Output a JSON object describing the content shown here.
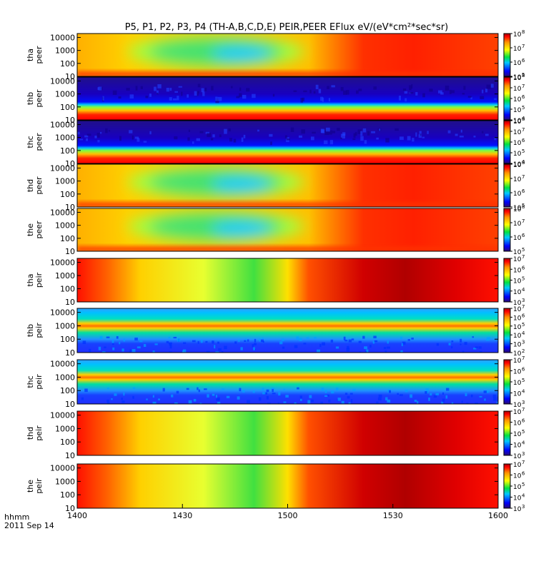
{
  "chart_data": {
    "type": "heatmap",
    "title": "P5, P1, P2, P3, P4 (TH-A,B,C,D,E) PEIR,PEER EFlux eV/(eV*cm²*sec*sr)",
    "time_axis": {
      "label_line1": "hhmm",
      "label_line2": "2011 Sep 14",
      "ticks": [
        "1400",
        "1430",
        "1500",
        "1530",
        "1600"
      ],
      "range": [
        "14:00",
        "16:00"
      ]
    },
    "y_axis": {
      "scale": "log",
      "range": [
        10,
        20000
      ],
      "ticks": [
        "10",
        "100",
        "1000",
        "10000"
      ]
    },
    "panels": [
      {
        "probe": "tha",
        "species": "peer",
        "pattern": "electron_smooth",
        "cbar_min_exp": 5,
        "cbar_max_exp": 8,
        "cbar_ticks": [
          "5",
          "6",
          "7",
          "8"
        ]
      },
      {
        "probe": "thb",
        "species": "peer",
        "pattern": "electron_band",
        "cbar_min_exp": 4,
        "cbar_max_exp": 8,
        "cbar_ticks": [
          "4",
          "5",
          "6",
          "7",
          "8"
        ]
      },
      {
        "probe": "thc",
        "species": "peer",
        "pattern": "electron_band",
        "cbar_min_exp": 4,
        "cbar_max_exp": 8,
        "cbar_ticks": [
          "4",
          "5",
          "6",
          "7",
          "8"
        ]
      },
      {
        "probe": "thd",
        "species": "peer",
        "pattern": "electron_smooth",
        "cbar_min_exp": 5,
        "cbar_max_exp": 8,
        "cbar_ticks": [
          "5",
          "6",
          "7",
          "8"
        ]
      },
      {
        "probe": "the",
        "species": "peer",
        "pattern": "electron_smooth",
        "cbar_min_exp": 5,
        "cbar_max_exp": 8,
        "cbar_ticks": [
          "5",
          "6",
          "7",
          "8"
        ]
      },
      {
        "probe": "tha",
        "species": "peir",
        "pattern": "ion_smooth",
        "cbar_min_exp": 3,
        "cbar_max_exp": 7,
        "cbar_ticks": [
          "3",
          "4",
          "5",
          "6",
          "7"
        ]
      },
      {
        "probe": "thb",
        "species": "peir",
        "pattern": "ion_band",
        "cbar_min_exp": 2,
        "cbar_max_exp": 7,
        "cbar_ticks": [
          "2",
          "3",
          "4",
          "5",
          "6",
          "7"
        ]
      },
      {
        "probe": "thc",
        "species": "peir",
        "pattern": "ion_band",
        "cbar_min_exp": 3,
        "cbar_max_exp": 7,
        "cbar_ticks": [
          "3",
          "4",
          "5",
          "6",
          "7"
        ]
      },
      {
        "probe": "thd",
        "species": "peir",
        "pattern": "ion_smooth",
        "cbar_min_exp": 3,
        "cbar_max_exp": 7,
        "cbar_ticks": [
          "3",
          "4",
          "5",
          "6",
          "7"
        ]
      },
      {
        "probe": "the",
        "species": "peir",
        "pattern": "ion_smooth",
        "cbar_min_exp": 3,
        "cbar_max_exp": 7,
        "cbar_ticks": [
          "3",
          "4",
          "5",
          "6",
          "7"
        ]
      }
    ],
    "colors": {
      "scale_low": "#2a0a70",
      "scale_mid_low": "#0000ff",
      "scale_mid": "#00c8ff",
      "scale_green": "#00e040",
      "scale_yellow": "#ffff00",
      "scale_orange": "#ff9000",
      "scale_high": "#ff0000",
      "scale_top": "#a00000"
    }
  }
}
